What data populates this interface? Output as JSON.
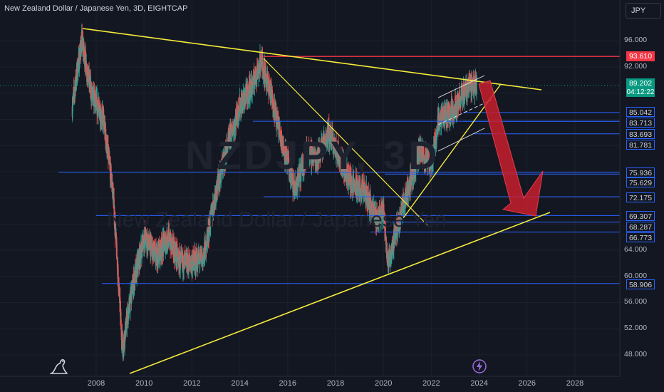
{
  "header": {
    "title": "New Zealand Dollar / Japanese Yen, 3D, EIGHTCAP",
    "currency_button": "JPY"
  },
  "watermark": {
    "symbol": "NZDJPY, 3D",
    "name": "New Zealand Dollar / Japanese Yen"
  },
  "y_axis": {
    "ticks": [
      "96.000",
      "92.000",
      "64.000",
      "60.000",
      "56.000",
      "52.000",
      "48.000"
    ]
  },
  "x_axis": {
    "ticks": [
      "2008",
      "2010",
      "2012",
      "2014",
      "2016",
      "2018",
      "2020",
      "2022",
      "2024",
      "2026",
      "2028"
    ]
  },
  "price_labels": {
    "resistance": "93.610",
    "current": "89.202",
    "countdown": "04:12:22",
    "levels": [
      "85.042",
      "83.713",
      "83.693",
      "81.781",
      "75.936",
      "75.629",
      "72.175",
      "69.307",
      "68.287",
      "66.773",
      "58.906"
    ]
  },
  "colors": {
    "background": "#131722",
    "candle_up": "#26a69a",
    "candle_down": "#ef5350",
    "trendline": "#f5eb3b",
    "level_line": "#2962ff",
    "resistance_line": "#f23645",
    "arrow": "#c81e2e"
  },
  "chart_data": {
    "type": "candlestick",
    "x_range": [
      "2007",
      "2028"
    ],
    "y_range": [
      46,
      98
    ],
    "y_scale": "linear",
    "current_price": 89.202,
    "horizontal_levels": [
      93.61,
      85.042,
      83.713,
      83.693,
      81.781,
      75.936,
      75.629,
      72.175,
      69.307,
      68.287,
      66.773,
      58.906
    ],
    "approx_price_path": [
      {
        "year": 2007.0,
        "price": 86
      },
      {
        "year": 2007.4,
        "price": 96
      },
      {
        "year": 2007.8,
        "price": 88
      },
      {
        "year": 2008.3,
        "price": 84
      },
      {
        "year": 2008.7,
        "price": 73
      },
      {
        "year": 2009.1,
        "price": 49
      },
      {
        "year": 2009.5,
        "price": 58
      },
      {
        "year": 2010.0,
        "price": 66
      },
      {
        "year": 2010.5,
        "price": 63
      },
      {
        "year": 2011.0,
        "price": 66
      },
      {
        "year": 2011.5,
        "price": 62
      },
      {
        "year": 2012.0,
        "price": 62
      },
      {
        "year": 2012.5,
        "price": 63
      },
      {
        "year": 2013.0,
        "price": 73
      },
      {
        "year": 2013.5,
        "price": 80
      },
      {
        "year": 2014.0,
        "price": 86
      },
      {
        "year": 2014.5,
        "price": 89
      },
      {
        "year": 2014.9,
        "price": 93
      },
      {
        "year": 2015.3,
        "price": 88
      },
      {
        "year": 2015.8,
        "price": 80
      },
      {
        "year": 2016.3,
        "price": 73
      },
      {
        "year": 2016.8,
        "price": 79
      },
      {
        "year": 2017.2,
        "price": 78
      },
      {
        "year": 2017.7,
        "price": 82
      },
      {
        "year": 2018.2,
        "price": 78
      },
      {
        "year": 2018.7,
        "price": 74
      },
      {
        "year": 2019.2,
        "price": 73
      },
      {
        "year": 2019.7,
        "price": 69
      },
      {
        "year": 2020.0,
        "price": 70
      },
      {
        "year": 2020.2,
        "price": 62
      },
      {
        "year": 2020.6,
        "price": 68
      },
      {
        "year": 2021.0,
        "price": 73
      },
      {
        "year": 2021.5,
        "price": 79
      },
      {
        "year": 2022.0,
        "price": 77
      },
      {
        "year": 2022.3,
        "price": 84
      },
      {
        "year": 2022.8,
        "price": 85
      },
      {
        "year": 2023.2,
        "price": 87
      },
      {
        "year": 2023.6,
        "price": 89.5
      },
      {
        "year": 2023.9,
        "price": 89.2
      }
    ]
  }
}
